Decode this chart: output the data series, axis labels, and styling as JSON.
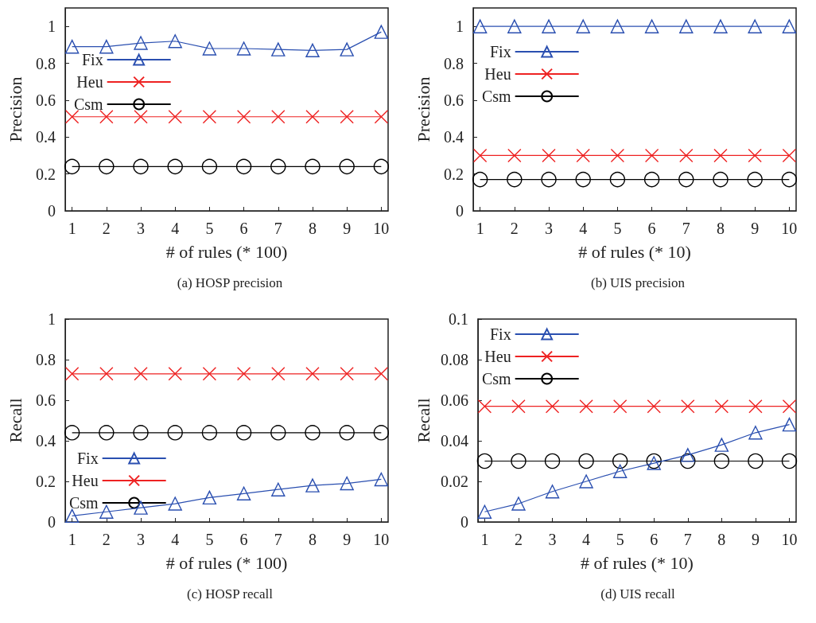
{
  "chart_data": [
    {
      "type": "line",
      "title": "(a) HOSP precision",
      "xlabel": "# of rules (* 100)",
      "ylabel": "Precision",
      "x": [
        1,
        2,
        3,
        4,
        5,
        6,
        7,
        8,
        9,
        10
      ],
      "xlim": [
        0.8,
        10.2
      ],
      "xticks": [
        1,
        2,
        3,
        4,
        5,
        6,
        7,
        8,
        9,
        10
      ],
      "ylim": [
        0,
        1.1
      ],
      "yticks": [
        0,
        0.2,
        0.4,
        0.6,
        0.8,
        1
      ],
      "grid": false,
      "legend": "left",
      "series": [
        {
          "name": "Fix",
          "color": "#2a4fb0",
          "marker": "triangle",
          "values": [
            0.89,
            0.89,
            0.91,
            0.92,
            0.88,
            0.88,
            0.875,
            0.87,
            0.875,
            0.97
          ]
        },
        {
          "name": "Heu",
          "color": "#ee2222",
          "marker": "cross",
          "values": [
            0.51,
            0.51,
            0.51,
            0.51,
            0.51,
            0.51,
            0.51,
            0.51,
            0.51,
            0.51
          ]
        },
        {
          "name": "Csm",
          "color": "#000000",
          "marker": "circle",
          "values": [
            0.24,
            0.24,
            0.24,
            0.24,
            0.24,
            0.24,
            0.24,
            0.24,
            0.24,
            0.24
          ]
        }
      ]
    },
    {
      "type": "line",
      "title": "(b) UIS precision",
      "xlabel": "# of rules (* 10)",
      "ylabel": "Precision",
      "x": [
        1,
        2,
        3,
        4,
        5,
        6,
        7,
        8,
        9,
        10
      ],
      "xlim": [
        0.8,
        10.2
      ],
      "xticks": [
        1,
        2,
        3,
        4,
        5,
        6,
        7,
        8,
        9,
        10
      ],
      "ylim": [
        0,
        1.1
      ],
      "yticks": [
        0,
        0.2,
        0.4,
        0.6,
        0.8,
        1
      ],
      "grid": false,
      "legend": "top left",
      "series": [
        {
          "name": "Fix",
          "color": "#2a4fb0",
          "marker": "triangle",
          "values": [
            1,
            1,
            1,
            1,
            1,
            1,
            1,
            1,
            1,
            1
          ]
        },
        {
          "name": "Heu",
          "color": "#ee2222",
          "marker": "cross",
          "values": [
            0.3,
            0.3,
            0.3,
            0.3,
            0.3,
            0.3,
            0.3,
            0.3,
            0.3,
            0.3
          ]
        },
        {
          "name": "Csm",
          "color": "#000000",
          "marker": "circle",
          "values": [
            0.17,
            0.17,
            0.17,
            0.17,
            0.17,
            0.17,
            0.17,
            0.17,
            0.17,
            0.17
          ]
        }
      ]
    },
    {
      "type": "line",
      "title": "(c) HOSP recall",
      "xlabel": "# of rules (* 100)",
      "ylabel": "Recall",
      "x": [
        1,
        2,
        3,
        4,
        5,
        6,
        7,
        8,
        9,
        10
      ],
      "xlim": [
        0.8,
        10.2
      ],
      "xticks": [
        1,
        2,
        3,
        4,
        5,
        6,
        7,
        8,
        9,
        10
      ],
      "ylim": [
        0,
        1
      ],
      "yticks": [
        0,
        0.2,
        0.4,
        0.6,
        0.8,
        1
      ],
      "grid": false,
      "legend": "bottom left",
      "series": [
        {
          "name": "Fix",
          "color": "#2a4fb0",
          "marker": "triangle",
          "values": [
            0.03,
            0.05,
            0.07,
            0.09,
            0.12,
            0.14,
            0.16,
            0.18,
            0.19,
            0.21
          ]
        },
        {
          "name": "Heu",
          "color": "#ee2222",
          "marker": "cross",
          "values": [
            0.73,
            0.73,
            0.73,
            0.73,
            0.73,
            0.73,
            0.73,
            0.73,
            0.73,
            0.73
          ]
        },
        {
          "name": "Csm",
          "color": "#000000",
          "marker": "circle",
          "values": [
            0.44,
            0.44,
            0.44,
            0.44,
            0.44,
            0.44,
            0.44,
            0.44,
            0.44,
            0.44
          ]
        }
      ]
    },
    {
      "type": "line",
      "title": "(d) UIS recall",
      "xlabel": "# of rules (* 10)",
      "ylabel": "Recall",
      "x": [
        1,
        2,
        3,
        4,
        5,
        6,
        7,
        8,
        9,
        10
      ],
      "xlim": [
        0.8,
        10.2
      ],
      "xticks": [
        1,
        2,
        3,
        4,
        5,
        6,
        7,
        8,
        9,
        10
      ],
      "ylim": [
        0,
        0.1
      ],
      "yticks": [
        0,
        0.02,
        0.04,
        0.06,
        0.08,
        0.1
      ],
      "grid": false,
      "legend": "top left",
      "series": [
        {
          "name": "Fix",
          "color": "#2a4fb0",
          "marker": "triangle",
          "values": [
            0.005,
            0.009,
            0.015,
            0.02,
            0.025,
            0.029,
            0.033,
            0.038,
            0.044,
            0.048
          ]
        },
        {
          "name": "Heu",
          "color": "#ee2222",
          "marker": "cross",
          "values": [
            0.057,
            0.057,
            0.057,
            0.057,
            0.057,
            0.057,
            0.057,
            0.057,
            0.057,
            0.057
          ]
        },
        {
          "name": "Csm",
          "color": "#000000",
          "marker": "circle",
          "values": [
            0.03,
            0.03,
            0.03,
            0.03,
            0.03,
            0.03,
            0.03,
            0.03,
            0.03,
            0.03
          ]
        }
      ]
    }
  ]
}
